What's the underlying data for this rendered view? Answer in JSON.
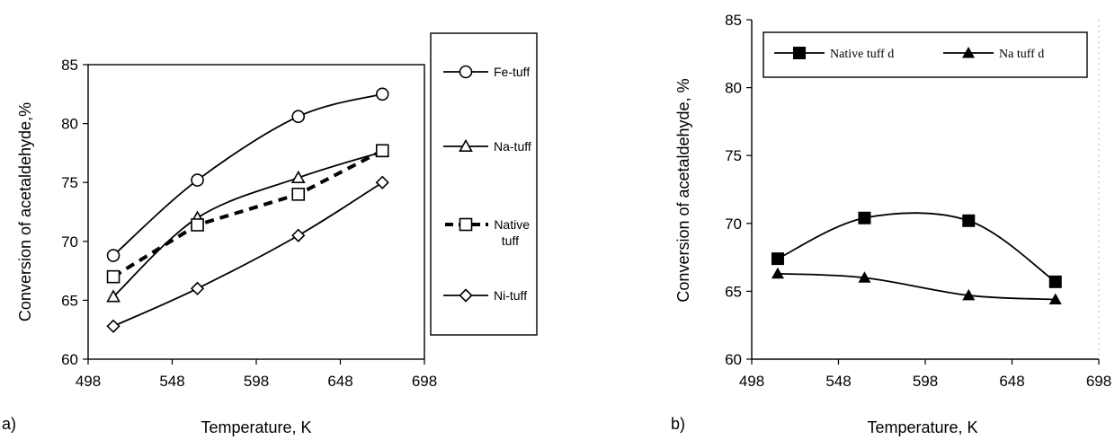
{
  "chart_data": [
    {
      "type": "line",
      "panel_label": "a)",
      "xlabel": "Temperature, K",
      "ylabel": "Conversion of acetaldehyde,%",
      "xlim": [
        498,
        698
      ],
      "ylim": [
        60,
        85
      ],
      "xticks": [
        "498",
        "548",
        "598",
        "648",
        "698"
      ],
      "yticks": [
        "60",
        "65",
        "70",
        "75",
        "80",
        "85"
      ],
      "legend_position": "right-outside",
      "series": [
        {
          "name": "Fe-tuff",
          "marker": "circle",
          "line": "smooth",
          "x": [
            513,
            563,
            623,
            673
          ],
          "values": [
            68.8,
            75.2,
            80.6,
            82.5
          ]
        },
        {
          "name": "Na-tuff",
          "marker": "triangle",
          "line": "smooth",
          "x": [
            513,
            563,
            623,
            673
          ],
          "values": [
            65.3,
            72.0,
            75.4,
            77.6
          ]
        },
        {
          "name": "Native tuff",
          "marker": "square",
          "line": "dashed",
          "x": [
            513,
            563,
            623,
            673
          ],
          "values": [
            67.0,
            71.4,
            74.0,
            77.7
          ]
        },
        {
          "name": "Ni-tuff",
          "marker": "diamond",
          "line": "smooth",
          "x": [
            513,
            563,
            623,
            673
          ],
          "values": [
            62.8,
            66.0,
            70.5,
            75.0
          ]
        }
      ]
    },
    {
      "type": "line",
      "panel_label": "b)",
      "xlabel": "Temperature, K",
      "ylabel": "Conversion of acetaldehyde, %",
      "xlim": [
        498,
        698
      ],
      "ylim": [
        60,
        85
      ],
      "xticks": [
        "498",
        "548",
        "598",
        "648",
        "698"
      ],
      "yticks": [
        "60",
        "65",
        "70",
        "75",
        "80",
        "85"
      ],
      "legend_position": "top-inside",
      "series": [
        {
          "name": "Native tuff d",
          "marker": "filled-square",
          "line": "smooth",
          "x": [
            513,
            563,
            623,
            673
          ],
          "values": [
            67.4,
            70.4,
            70.2,
            65.7
          ]
        },
        {
          "name": "Na tuff d",
          "marker": "filled-triangle",
          "line": "smooth",
          "x": [
            513,
            563,
            623,
            673
          ],
          "values": [
            66.3,
            66.0,
            64.7,
            64.4
          ]
        }
      ]
    }
  ]
}
